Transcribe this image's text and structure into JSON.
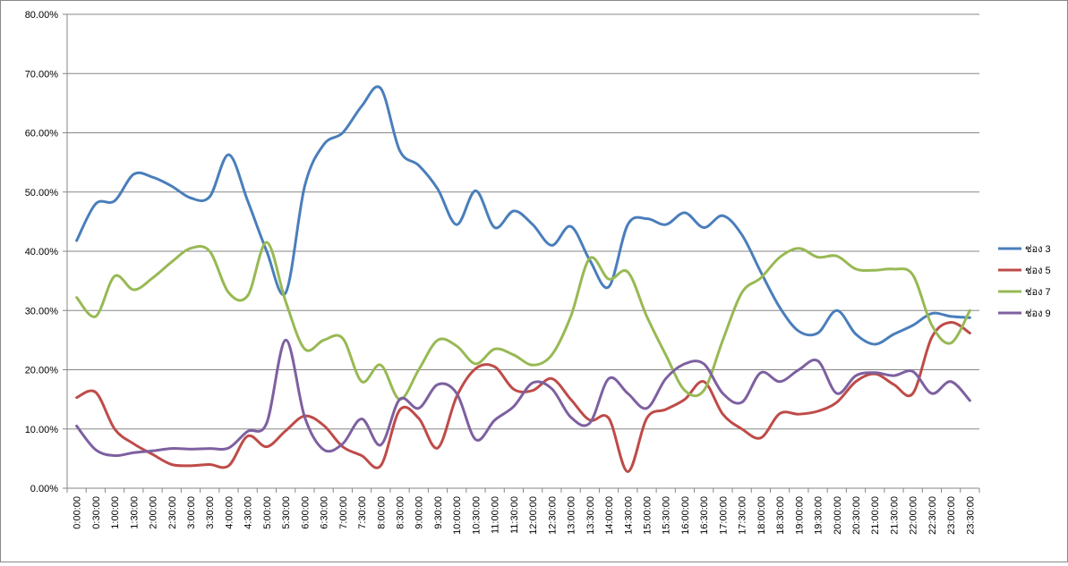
{
  "chart_data": {
    "type": "line",
    "title": "",
    "xlabel": "",
    "ylabel": "",
    "ylim": [
      0,
      80
    ],
    "grid": true,
    "legend_position": "right",
    "y_ticks": [
      "0.00%",
      "10.00%",
      "20.00%",
      "30.00%",
      "40.00%",
      "50.00%",
      "60.00%",
      "70.00%",
      "80.00%"
    ],
    "x": [
      "0:00:00",
      "0:30:00",
      "1:00:00",
      "1:30:00",
      "2:00:00",
      "2:30:00",
      "3:00:00",
      "3:30:00",
      "4:00:00",
      "4:30:00",
      "5:00:00",
      "5:30:00",
      "6:00:00",
      "6:30:00",
      "7:00:00",
      "7:30:00",
      "8:00:00",
      "8:30:00",
      "9:00:00",
      "9:30:00",
      "10:00:00",
      "10:30:00",
      "11:00:00",
      "11:30:00",
      "12:00:00",
      "12:30:00",
      "13:00:00",
      "13:30:00",
      "14:00:00",
      "14:30:00",
      "15:00:00",
      "15:30:00",
      "16:00:00",
      "16:30:00",
      "17:00:00",
      "17:30:00",
      "18:00:00",
      "18:30:00",
      "19:00:00",
      "19:30:00",
      "20:00:00",
      "20:30:00",
      "21:00:00",
      "21:30:00",
      "22:00:00",
      "22:30:00",
      "23:00:00",
      "23:30:00"
    ],
    "series": [
      {
        "name": "ช่อง 3",
        "color": "#4a7ebb",
        "values": [
          41.8,
          48.0,
          48.5,
          53.0,
          52.5,
          51.0,
          49.0,
          49.2,
          56.3,
          48.5,
          40.0,
          33.0,
          51.0,
          58.0,
          60.0,
          64.5,
          67.5,
          57.0,
          54.5,
          50.5,
          44.5,
          50.2,
          44.0,
          46.8,
          44.5,
          41.0,
          44.2,
          38.5,
          34.0,
          44.5,
          45.5,
          44.5,
          46.5,
          44.0,
          46.0,
          42.8,
          36.5,
          30.5,
          26.5,
          26.2,
          30.0,
          26.0,
          24.3,
          26.0,
          27.5,
          29.5,
          29.0,
          28.8
        ]
      },
      {
        "name": "ช่อง 5",
        "color": "#be4b48",
        "values": [
          15.3,
          16.2,
          10.0,
          7.5,
          5.7,
          4.0,
          3.8,
          4.0,
          3.8,
          8.8,
          7.0,
          9.7,
          12.2,
          10.6,
          7.0,
          5.5,
          3.8,
          13.2,
          11.8,
          6.8,
          15.5,
          20.2,
          20.5,
          16.7,
          16.5,
          18.5,
          15.0,
          11.5,
          11.8,
          2.8,
          11.8,
          13.3,
          15.0,
          18.0,
          12.5,
          10.0,
          8.5,
          12.6,
          12.5,
          13.0,
          14.5,
          18.0,
          19.3,
          17.5,
          16.0,
          25.5,
          28.0,
          26.2
        ]
      },
      {
        "name": "ช่อง 7",
        "color": "#98b954",
        "values": [
          32.2,
          29.0,
          35.8,
          33.5,
          35.5,
          38.2,
          40.5,
          40.0,
          33.0,
          32.5,
          41.5,
          31.5,
          23.5,
          25.0,
          25.3,
          18.0,
          20.8,
          15.0,
          20.0,
          25.0,
          24.0,
          21.0,
          23.5,
          22.5,
          20.8,
          22.5,
          29.0,
          38.8,
          35.3,
          36.5,
          29.0,
          22.5,
          16.5,
          16.5,
          25.0,
          33.0,
          35.5,
          39.0,
          40.5,
          39.0,
          39.2,
          37.0,
          36.8,
          37.0,
          36.0,
          27.5,
          24.5,
          30.0
        ]
      },
      {
        "name": "ช่อง 9",
        "color": "#7d60a0",
        "values": [
          10.5,
          6.5,
          5.5,
          6.0,
          6.3,
          6.7,
          6.6,
          6.7,
          6.8,
          9.6,
          11.0,
          25.0,
          12.0,
          6.5,
          7.5,
          11.7,
          7.3,
          15.0,
          13.5,
          17.5,
          16.0,
          8.2,
          11.5,
          13.8,
          17.8,
          16.8,
          12.0,
          11.0,
          18.5,
          16.0,
          13.5,
          18.5,
          21.0,
          21.0,
          16.0,
          14.5,
          19.5,
          18.0,
          20.0,
          21.5,
          16.0,
          19.0,
          19.5,
          19.0,
          19.7,
          16.0,
          18.0,
          14.8
        ]
      }
    ]
  }
}
